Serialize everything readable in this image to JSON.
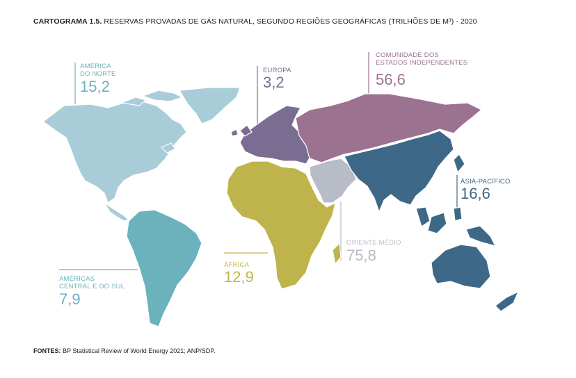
{
  "caption": {
    "prefix": "CARTOGRAMA 1.5.",
    "text": "RESERVAS PROVADAS DE GÁS NATURAL, SEGUNDO REGIÕES GEOGRÁFICAS (TRILHÕES DE M³) - 2020"
  },
  "sources": {
    "prefix": "FONTES:",
    "text": "BP Statistical Review of World Energy 2021; ANP/SDP."
  },
  "regions": {
    "north_america": {
      "label_1": "AMÉRICA",
      "label_2": "DO NORTE",
      "value": "15,2",
      "color": "#a9cdd8"
    },
    "south_america": {
      "label_1": "AMÉRICAS",
      "label_2": "CENTRAL E DO SUL",
      "value": "7,9",
      "color": "#6bb2bd"
    },
    "europe": {
      "label_1": "EUROPA",
      "value": "3,2",
      "color": "#7b6d92"
    },
    "cis": {
      "label_1": "COMUNIDADE DOS",
      "label_2": "ESTADOS INDEPENDENTES",
      "value": "56,6",
      "color": "#9b7390"
    },
    "africa": {
      "label_1": "ÁFRICA",
      "value": "12,9",
      "color": "#bfb44c"
    },
    "middle_east": {
      "label_1": "ORIENTE MÉDIO",
      "value": "75,8",
      "color": "#b7bcc6"
    },
    "asia_pacific": {
      "label_1": "ÁSIA-PACÍFICO",
      "value": "16,6",
      "color": "#3e6887"
    }
  }
}
